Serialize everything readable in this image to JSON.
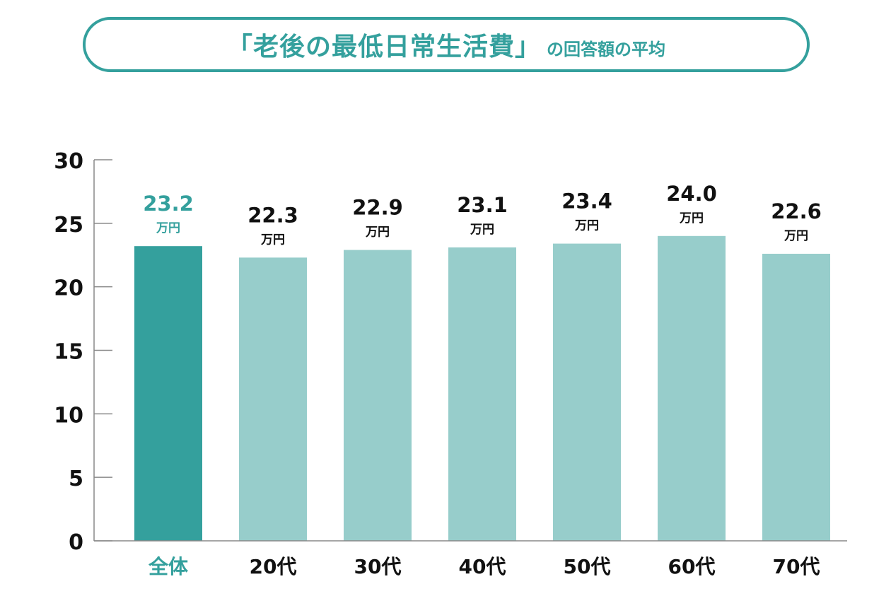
{
  "title": {
    "main": "「老後の最低日常生活費」",
    "sub": "の回答額の平均"
  },
  "colors": {
    "accent": "#34a09d",
    "bar_highlight": "#34a09d",
    "bar_normal": "#97cdcb",
    "text_dark": "#111111",
    "axis": "#888888"
  },
  "chart_data": {
    "type": "bar",
    "categories": [
      "全体",
      "20代",
      "30代",
      "40代",
      "50代",
      "60代",
      "70代"
    ],
    "values": [
      23.2,
      22.3,
      22.9,
      23.1,
      23.4,
      24.0,
      22.6
    ],
    "value_labels": [
      "23.2",
      "22.3",
      "22.9",
      "23.1",
      "23.4",
      "24.0",
      "22.6"
    ],
    "unit": "万円",
    "highlight_index": 0,
    "ylim": [
      0,
      30
    ],
    "yticks": [
      0,
      5,
      10,
      15,
      20,
      25,
      30
    ],
    "xlabel": "",
    "ylabel": "",
    "grid": false
  }
}
